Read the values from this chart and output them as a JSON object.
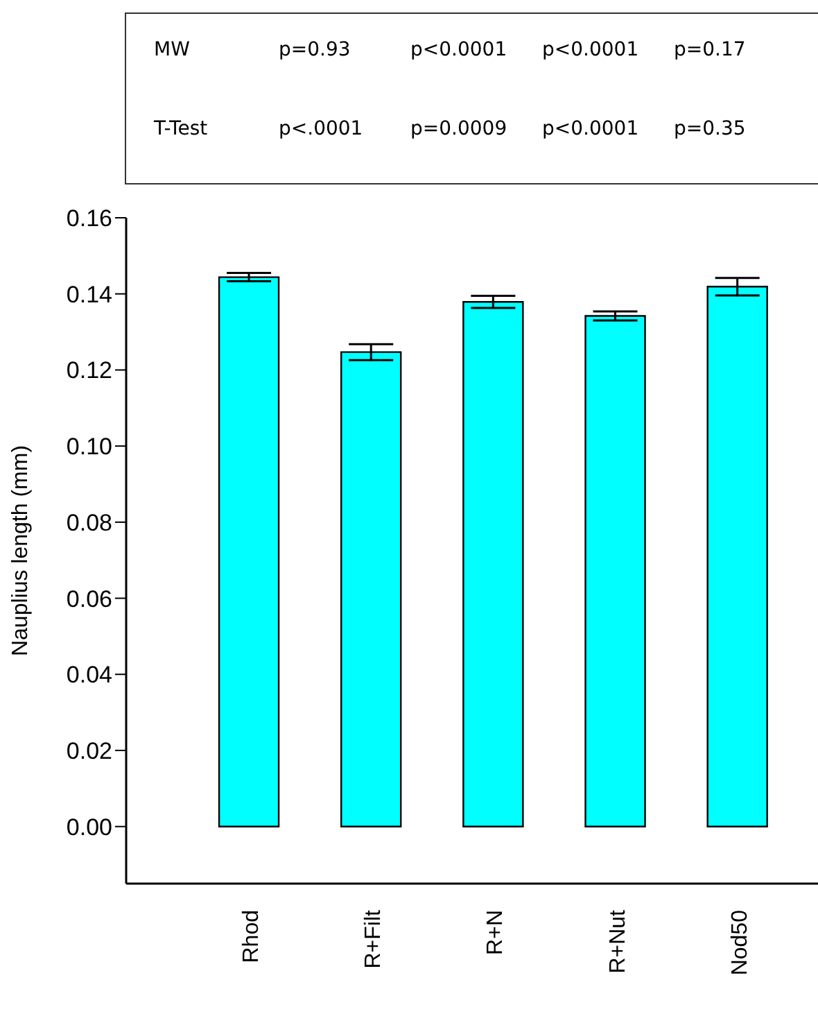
{
  "chart_data": {
    "type": "bar",
    "ylabel": "Nauplius length (mm)",
    "categories": [
      "Rhod",
      "R+Filt",
      "R+N",
      "R+Nut",
      "Nod50"
    ],
    "values": [
      0.1444,
      0.1247,
      0.1379,
      0.1342,
      0.1419
    ],
    "errors": [
      0.0011,
      0.0021,
      0.0016,
      0.0012,
      0.0023
    ],
    "color": "#00ffff",
    "ylim": [
      -0.015,
      0.16
    ],
    "yticks": [
      {
        "value": 0,
        "label": "0.00"
      },
      {
        "value": 0.02,
        "label": "0.02"
      },
      {
        "value": 0.04,
        "label": "0.04"
      },
      {
        "value": 0.06,
        "label": "0.06"
      },
      {
        "value": 0.08,
        "label": "0.08"
      },
      {
        "value": 0.1,
        "label": "0.10"
      },
      {
        "value": 0.12,
        "label": "0.12"
      },
      {
        "value": 0.14,
        "label": "0.14"
      },
      {
        "value": 0.16,
        "label": "0.16"
      }
    ],
    "grid": false,
    "legend": false,
    "annotations": [
      "MW",
      "p=0.93",
      "p<0.0001",
      "p<0.0001",
      "p=0.17",
      "T-Test",
      "p<.0001",
      "p=0.0009",
      "p<0.0001",
      "p=0.35"
    ]
  }
}
